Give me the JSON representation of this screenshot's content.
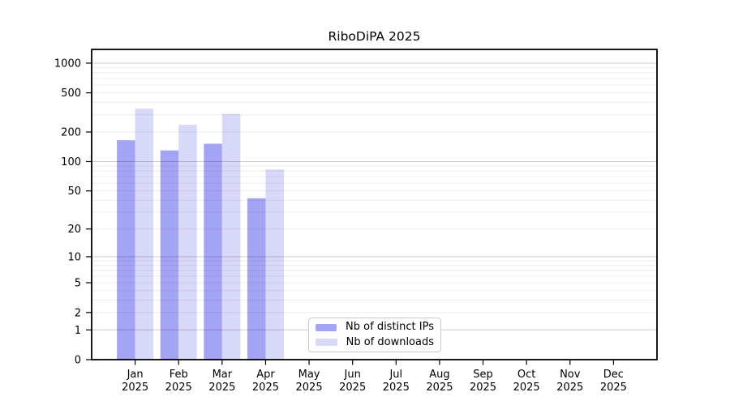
{
  "chart_data": {
    "type": "bar",
    "title": "RiboDiPA 2025",
    "categories": [
      "Jan 2025",
      "Feb 2025",
      "Mar 2025",
      "Apr 2025",
      "May 2025",
      "Jun 2025",
      "Jul 2025",
      "Aug 2025",
      "Sep 2025",
      "Oct 2025",
      "Nov 2025",
      "Dec 2025"
    ],
    "series": [
      {
        "name": "Nb of distinct IPs",
        "color": "#a4a4f4",
        "values": [
          165,
          130,
          152,
          42,
          null,
          null,
          null,
          null,
          null,
          null,
          null,
          null
        ]
      },
      {
        "name": "Nb of downloads",
        "color": "#d8d8f8",
        "values": [
          345,
          237,
          305,
          83,
          null,
          null,
          null,
          null,
          null,
          null,
          null,
          null
        ]
      }
    ],
    "xlabel": "",
    "ylabel": "",
    "yscale": "log10(value+1)",
    "yticks": [
      0,
      1,
      2,
      5,
      10,
      20,
      50,
      100,
      200,
      500,
      1000
    ],
    "ylim": [
      0,
      1380
    ],
    "grid": "horizontal",
    "legend_position": "bottom-center-inside",
    "colors": {
      "axis": "#000000",
      "grid_major": "#cccccc",
      "grid_minor": "#ededed",
      "background": "#ffffff"
    }
  }
}
